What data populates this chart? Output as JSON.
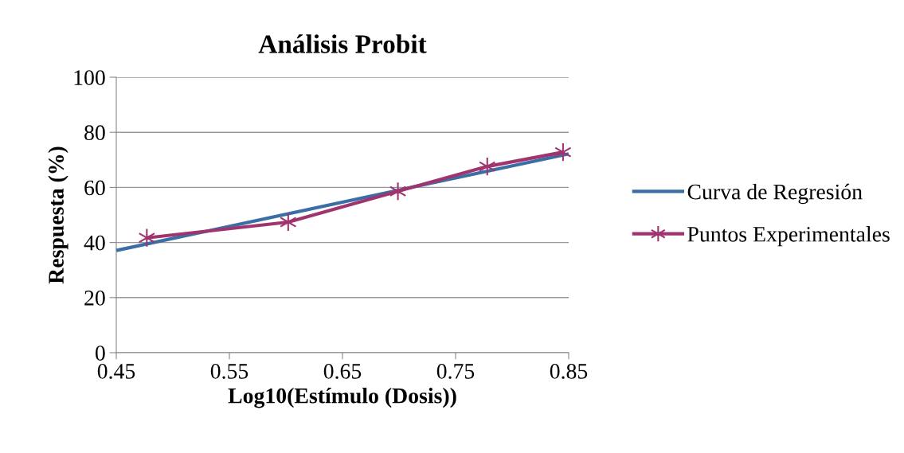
{
  "chart_data": {
    "type": "line",
    "title": "Análisis Probit",
    "xlabel": "Log10(Estímulo (Dosis))",
    "ylabel": "Respuesta (%)",
    "xlim": [
      0.45,
      0.85
    ],
    "xticks": [
      {
        "value": 0.45,
        "label": "0.45"
      },
      {
        "value": 0.55,
        "label": "0.55"
      },
      {
        "value": 0.65,
        "label": "0.65"
      },
      {
        "value": 0.75,
        "label": "0.75"
      },
      {
        "value": 0.85,
        "label": "0.85"
      }
    ],
    "ylim": [
      0,
      100
    ],
    "yticks": [
      0,
      20,
      40,
      60,
      80,
      100
    ],
    "grid": "y",
    "legend": "right",
    "series": [
      {
        "name": "Curva de Regresión",
        "color": "#3a6ea5",
        "x": [
          0.45,
          0.85
        ],
        "values": [
          37.1,
          72.2
        ],
        "marker": "none"
      },
      {
        "name": "Puntos Experimentales",
        "color": "#a0346e",
        "x": [
          0.477,
          0.602,
          0.699,
          0.778,
          0.845
        ],
        "values": [
          41.7,
          47.4,
          58.6,
          67.6,
          72.8
        ],
        "marker": "cross"
      }
    ]
  }
}
